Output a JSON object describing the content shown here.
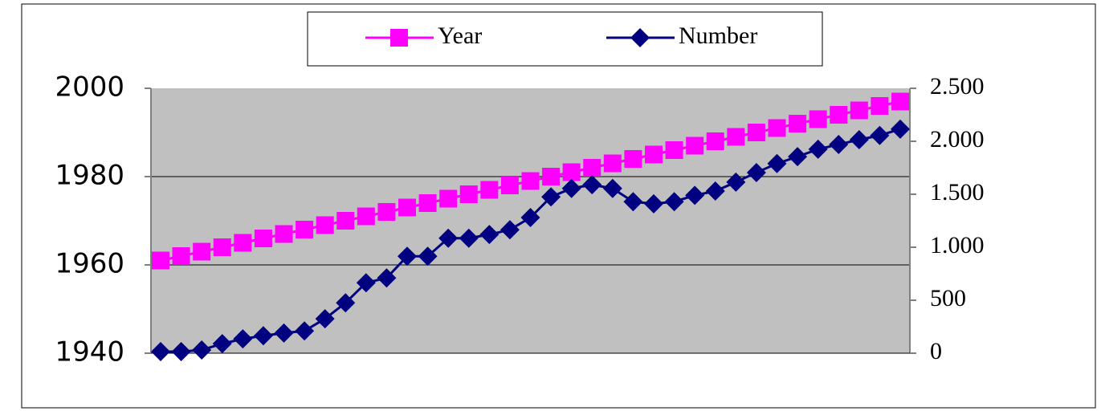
{
  "chart_data": {
    "type": "line",
    "series": [
      {
        "name": "Year",
        "color": "#ff00ff",
        "marker": "square",
        "axis": "y",
        "values": [
          1961,
          1962,
          1963,
          1964,
          1965,
          1966,
          1967,
          1968,
          1969,
          1970,
          1971,
          1972,
          1973,
          1974,
          1975,
          1976,
          1977,
          1978,
          1979,
          1980,
          1981,
          1982,
          1983,
          1984,
          1985,
          1986,
          1987,
          1988,
          1989,
          1990,
          1991,
          1992,
          1993,
          1994,
          1995,
          1996,
          1997
        ]
      },
      {
        "name": "Number",
        "color": "#000080",
        "marker": "diamond",
        "axis": "y2",
        "values": [
          15,
          15,
          30,
          90,
          135,
          165,
          190,
          210,
          325,
          475,
          665,
          710,
          915,
          915,
          1085,
          1085,
          1120,
          1165,
          1280,
          1475,
          1555,
          1590,
          1555,
          1430,
          1410,
          1430,
          1490,
          1530,
          1615,
          1705,
          1790,
          1855,
          1925,
          1970,
          2015,
          2055,
          2115
        ]
      }
    ],
    "ylim": [
      1940,
      2000
    ],
    "yticks": [
      1940,
      1960,
      1980,
      2000
    ],
    "y2lim": [
      0,
      2500
    ],
    "y2ticks": [
      0,
      500,
      {
        "value": 1000,
        "label": "1.000"
      },
      {
        "value": 1500,
        "label": "1.500"
      },
      {
        "value": 2000,
        "label": "2.000"
      },
      {
        "value": 2500,
        "label": "2.500"
      }
    ],
    "grid": true,
    "legend": "top"
  }
}
